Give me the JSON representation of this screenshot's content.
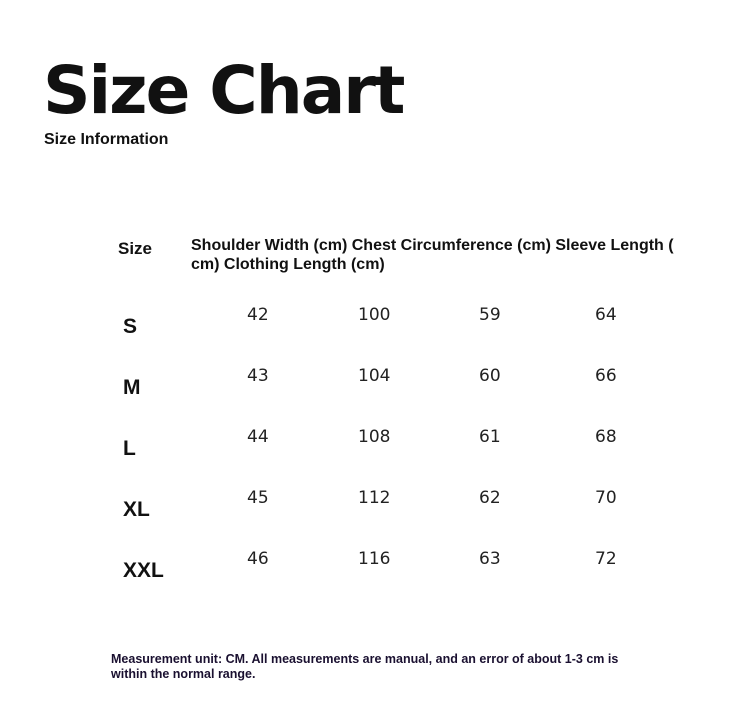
{
  "title": "Size Chart",
  "subtitle": "Size Information",
  "table": {
    "size_header": "Size",
    "column_header": "Shoulder Width (cm) Chest Circumference (cm) Sleeve Length ( cm) Clothing Length (cm)",
    "rows": [
      {
        "size": "S",
        "values": [
          "42",
          "100",
          "59",
          "64"
        ]
      },
      {
        "size": "M",
        "values": [
          "43",
          "104",
          "60",
          "66"
        ]
      },
      {
        "size": "L",
        "values": [
          "44",
          "108",
          "61",
          "68"
        ]
      },
      {
        "size": "XL",
        "values": [
          "45",
          "112",
          "62",
          "70"
        ]
      },
      {
        "size": "XXL",
        "values": [
          "46",
          "116",
          "63",
          "72"
        ]
      }
    ]
  },
  "note": "Measurement unit: CM. All measurements are manual, and an error of about 1-3 cm is within the normal range."
}
